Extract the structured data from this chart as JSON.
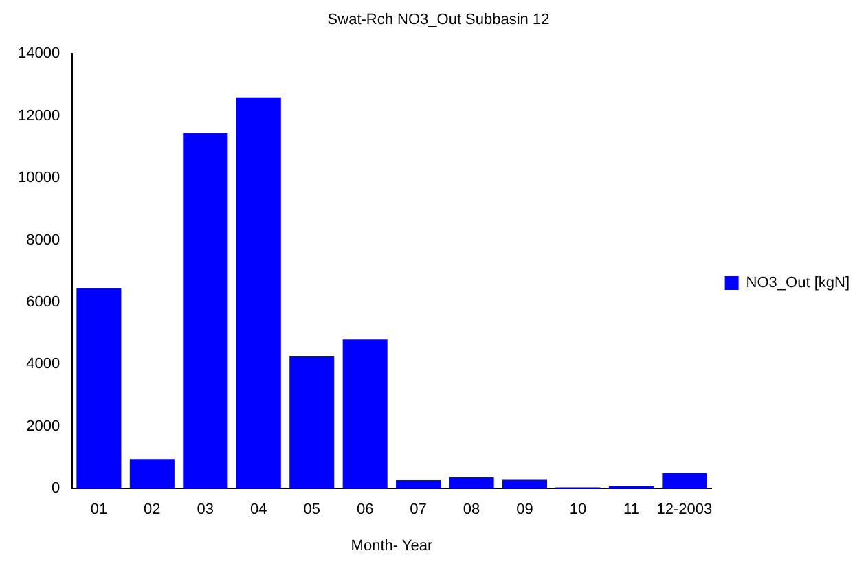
{
  "chart_data": {
    "type": "bar",
    "title": "Swat-Rch NO3_Out Subbasin 12",
    "xlabel": "Month- Year",
    "categories": [
      "01",
      "02",
      "03",
      "04",
      "05",
      "06",
      "07",
      "08",
      "09",
      "10",
      "11",
      "12-2003"
    ],
    "series": [
      {
        "name": "NO3_Out [kgN]",
        "color": "#0000ff",
        "values": [
          6450,
          950,
          11450,
          12600,
          4250,
          4800,
          270,
          360,
          280,
          40,
          80,
          500
        ]
      }
    ],
    "ylim": [
      0,
      14000
    ],
    "yticks": [
      0,
      2000,
      4000,
      6000,
      8000,
      10000,
      12000,
      14000
    ],
    "grid": false,
    "legend": "right"
  }
}
